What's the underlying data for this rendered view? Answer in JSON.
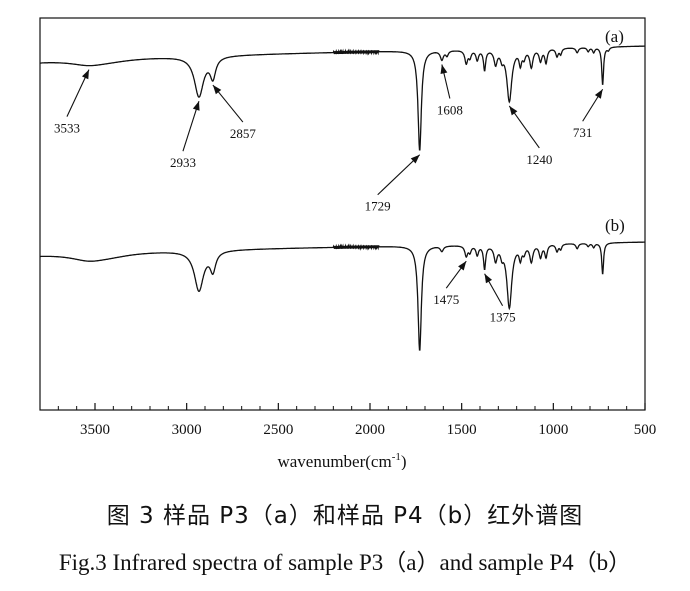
{
  "chart_data": {
    "type": "line",
    "xlabel": "wavenumber(cm",
    "xlabel_sup": "-1",
    "xlabel_close": ")",
    "xlim": [
      3800,
      500
    ],
    "x_ticks": [
      3500,
      3000,
      2500,
      2000,
      1500,
      1000,
      500
    ],
    "y_ticks": [],
    "grid": false,
    "series": [
      {
        "name": "(a)",
        "label": "(a)",
        "annotations": [
          {
            "label": "3533",
            "x": 3533
          },
          {
            "label": "2933",
            "x": 2933
          },
          {
            "label": "2857",
            "x": 2857
          },
          {
            "label": "1729",
            "x": 1729
          },
          {
            "label": "1608",
            "x": 1608
          },
          {
            "label": "1240",
            "x": 1240
          },
          {
            "label": "731",
            "x": 731
          }
        ]
      },
      {
        "name": "(b)",
        "label": "(b)",
        "annotations": [
          {
            "label": "1475",
            "x": 1475
          },
          {
            "label": "1375",
            "x": 1375
          }
        ]
      }
    ]
  },
  "caption_cn": "图 3  样品 P3（a）和样品 P4（b）红外谱图",
  "caption_en": "Fig.3 Infrared spectra of sample P3（a）and sample P4（b）"
}
